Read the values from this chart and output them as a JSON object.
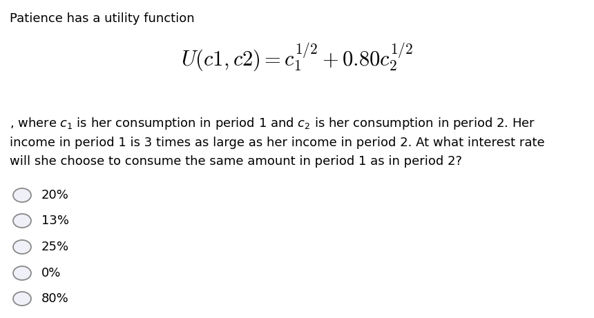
{
  "background_color": "#ffffff",
  "title_text": "Patience has a utility function",
  "title_fontsize": 13,
  "formula_fontsize": 22,
  "body_fontsize": 13,
  "options": [
    "20%",
    "13%",
    "25%",
    "0%",
    "80%"
  ],
  "options_fontsize": 13,
  "circle_color": "#888888",
  "circle_facecolor": "#f0f0f8",
  "circle_linewidth": 1.3,
  "body_linespacing": 1.6
}
